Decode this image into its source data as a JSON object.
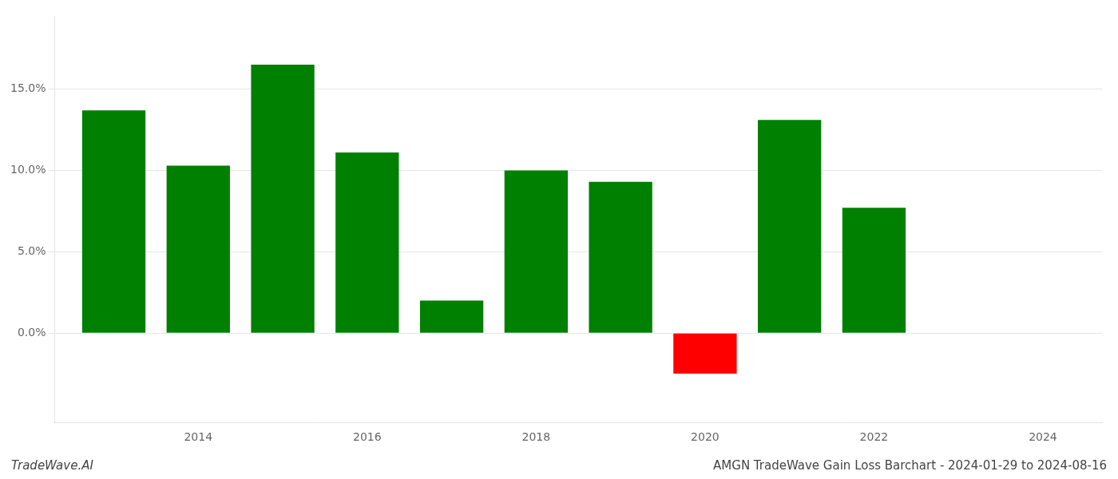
{
  "chart_data": {
    "type": "bar",
    "title": "AMGN TradeWave Gain Loss Barchart - 2024-01-29 to 2024-08-16",
    "annotations": [
      "TradeWave.AI"
    ],
    "x": [
      2013,
      2014,
      2015,
      2016,
      2017,
      2018,
      2019,
      2020,
      2021,
      2022,
      2023
    ],
    "values": [
      0.137,
      0.103,
      0.165,
      0.111,
      0.02,
      0.1,
      0.093,
      -0.025,
      0.131,
      0.077,
      0.0
    ],
    "colors": [
      "#008000",
      "#008000",
      "#008000",
      "#008000",
      "#008000",
      "#008000",
      "#008000",
      "#ff0000",
      "#008000",
      "#008000",
      "#008000"
    ],
    "xlim": [
      2012.3,
      2024.7
    ],
    "xticks": [
      2014,
      2016,
      2018,
      2020,
      2022,
      2024
    ],
    "ylim": [
      -0.055,
      0.195
    ],
    "yticks": [
      {
        "value": 0.0,
        "label": "0.0%"
      },
      {
        "value": 0.05,
        "label": "5.0%"
      },
      {
        "value": 0.1,
        "label": "10.0%"
      },
      {
        "value": 0.15,
        "label": "15.0%"
      }
    ],
    "grid": true
  }
}
